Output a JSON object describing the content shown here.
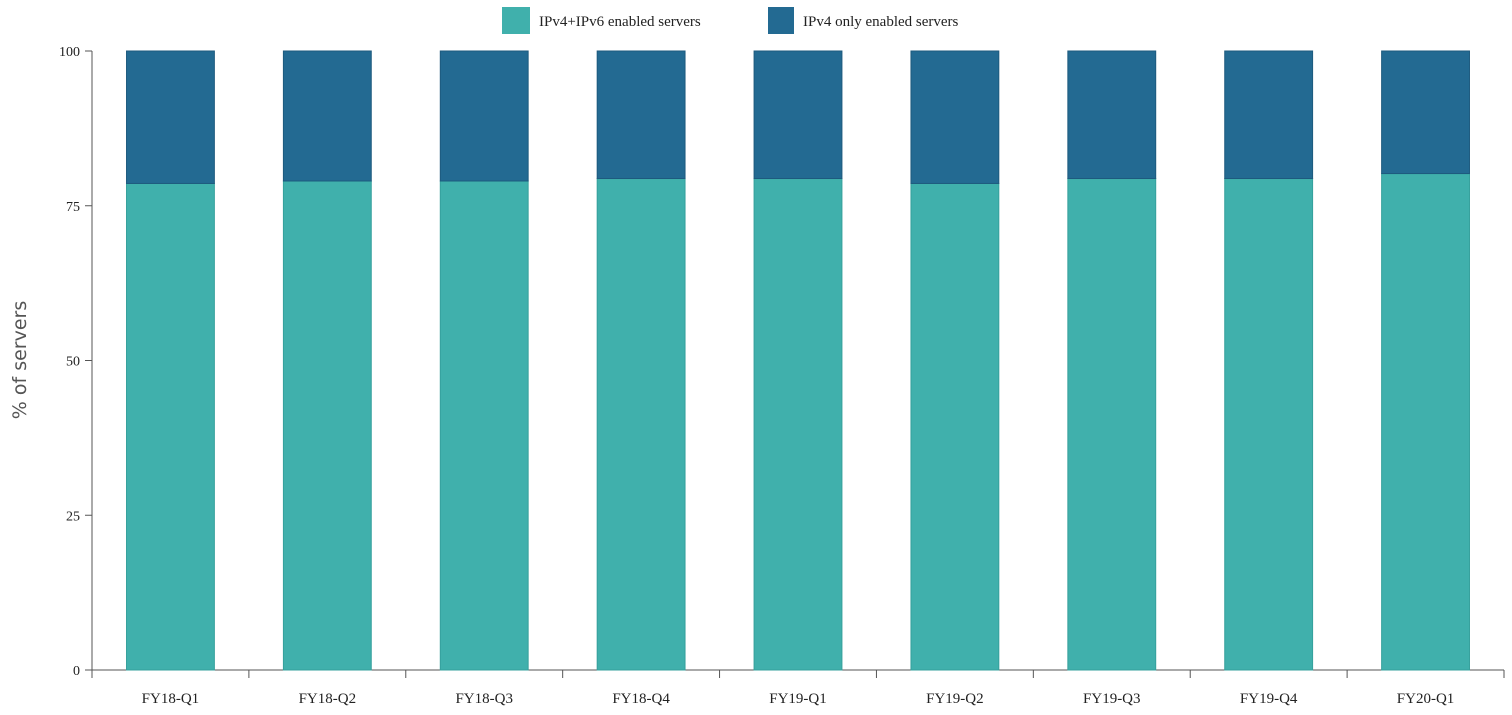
{
  "chart_data": {
    "type": "bar",
    "stacked": true,
    "title": "",
    "xlabel": "",
    "ylabel": "% of servers",
    "ylim": [
      0,
      100
    ],
    "yticks": [
      0,
      25,
      50,
      75,
      100
    ],
    "grid": false,
    "legend": "top-center",
    "categories": [
      "FY18-Q1",
      "FY18-Q2",
      "FY18-Q3",
      "FY18-Q4",
      "FY19-Q1",
      "FY19-Q2",
      "FY19-Q3",
      "FY19-Q4",
      "FY20-Q1"
    ],
    "series": [
      {
        "name": "IPv4+IPv6 enabled servers",
        "color": "#40b0ac",
        "values": [
          78.6,
          79.0,
          79.0,
          79.4,
          79.4,
          78.6,
          79.4,
          79.4,
          80.2
        ]
      },
      {
        "name": "IPv4 only enabled servers",
        "color": "#236a92",
        "values": [
          21.4,
          21.0,
          21.0,
          20.6,
          20.6,
          21.4,
          20.6,
          20.6,
          19.8
        ]
      }
    ]
  }
}
